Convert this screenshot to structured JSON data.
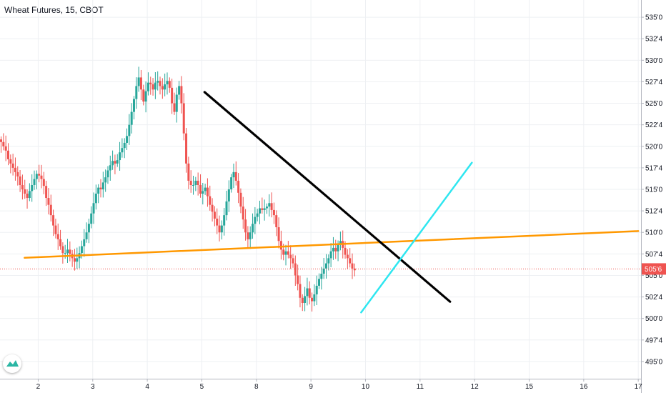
{
  "header": {
    "title": "Wheat Futures, 15, CBOT"
  },
  "colors": {
    "up": "#26a69a",
    "down": "#ef5350",
    "grid": "#eef0f3",
    "last_price": "#ef5350",
    "orange_line": "#ff9800",
    "black_line": "#000000",
    "cyan_line": "#2ee6f0",
    "logo": "#2bb6a4"
  },
  "logo": {
    "icon": "tradingview-logo-icon"
  },
  "chart_data": {
    "type": "candlestick",
    "symbol": "Wheat Futures, 15, CBOT",
    "y_ticks": [
      "535'0",
      "532'4",
      "530'0",
      "527'4",
      "525'0",
      "522'4",
      "520'0",
      "517'4",
      "515'0",
      "512'4",
      "510'0",
      "507'4",
      "505'0",
      "502'4",
      "500'0",
      "497'4",
      "495'0"
    ],
    "y_tick_values": [
      535.0,
      532.5,
      530.0,
      527.5,
      525.0,
      522.5,
      520.0,
      517.5,
      515.0,
      512.5,
      510.0,
      507.5,
      505.0,
      502.5,
      500.0,
      497.5,
      495.0
    ],
    "ylim": [
      493.0,
      537.0
    ],
    "x_ticks": [
      "2",
      "3",
      "4",
      "5",
      "8",
      "9",
      "10",
      "11",
      "12",
      "15",
      "16",
      "17"
    ],
    "x_tick_values": [
      1.0,
      2.0,
      3.0,
      4.0,
      5.0,
      6.0,
      7.0,
      8.0,
      9.0,
      10.0,
      11.0,
      12.0
    ],
    "xlim": [
      0.3,
      12.05
    ],
    "last_price": {
      "label": "505'6",
      "value": 505.75
    },
    "candles_x_start": 0.32,
    "candles_x_step": 0.0435,
    "close_path": [
      520.5,
      520.0,
      519.5,
      518.5,
      518.0,
      517.5,
      517.0,
      516.5,
      515.5,
      515.0,
      514.5,
      514.0,
      514.8,
      515.5,
      516.2,
      516.8,
      516.6,
      516.2,
      515.4,
      514.0,
      513.2,
      512.0,
      510.8,
      509.8,
      509.2,
      508.4,
      507.6,
      507.6,
      508.0,
      507.5,
      507.0,
      506.6,
      507.0,
      507.6,
      508.4,
      509.2,
      510.0,
      511.0,
      512.2,
      513.4,
      514.5,
      515.2,
      515.0,
      515.8,
      516.4,
      517.2,
      517.8,
      518.3,
      518.0,
      518.4,
      519.3,
      519.8,
      520.4,
      521.2,
      522.5,
      524.0,
      525.5,
      527.0,
      528.0,
      526.6,
      525.2,
      526.4,
      527.4,
      527.2,
      526.6,
      527.4,
      527.6,
      527.0,
      526.6,
      527.2,
      527.6,
      526.8,
      525.0,
      524.0,
      526.0,
      527.0,
      525.0,
      521.5,
      518.0,
      516.0,
      515.5,
      515.5,
      516.0,
      515.5,
      514.5,
      514.8,
      515.2,
      514.2,
      513.2,
      512.4,
      511.6,
      510.8,
      510.0,
      510.8,
      512.0,
      513.6,
      515.0,
      516.4,
      517.0,
      516.0,
      514.6,
      513.0,
      511.5,
      510.0,
      509.2,
      510.0,
      511.0,
      511.8,
      512.2,
      512.8,
      512.6,
      512.8,
      513.0,
      513.4,
      512.6,
      512.0,
      510.6,
      509.0,
      508.0,
      507.4,
      507.8,
      507.4,
      507.0,
      506.4,
      505.0,
      504.0,
      502.4,
      501.8,
      502.6,
      503.5,
      502.4,
      502.0,
      502.8,
      503.8,
      504.6,
      505.2,
      505.8,
      506.4,
      507.0,
      507.8,
      508.2,
      507.8,
      508.6,
      509.0,
      508.2,
      507.4,
      507.0,
      506.4,
      505.8,
      505.6
    ],
    "trend_lines": [
      {
        "color": "orange",
        "x": [
          0.75,
          12.0
        ],
        "y": [
          507.05,
          510.15
        ]
      },
      {
        "color": "black",
        "x": [
          4.05,
          8.55
        ],
        "y": [
          526.3,
          501.95
        ]
      },
      {
        "color": "cyan",
        "x": [
          6.92,
          8.95
        ],
        "y": [
          500.7,
          518.1
        ]
      }
    ]
  }
}
